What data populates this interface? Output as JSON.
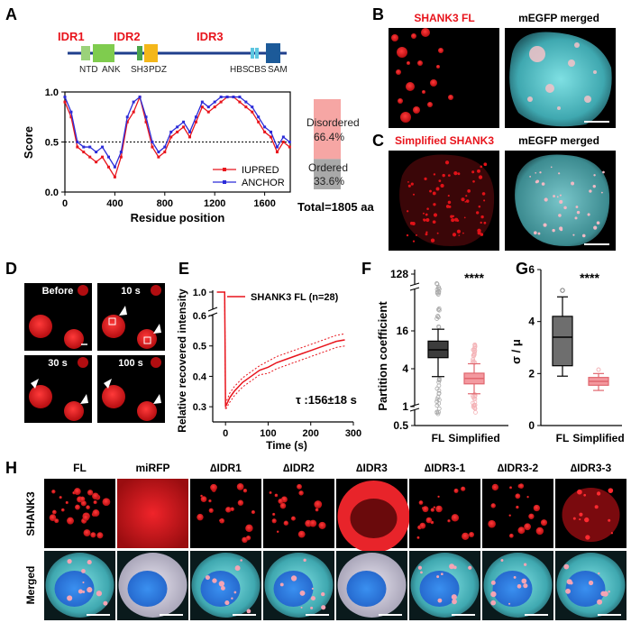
{
  "panels": {
    "A": {
      "letter": "A",
      "domain_map": {
        "region_labels": [
          "IDR1",
          "IDR2",
          "IDR3"
        ],
        "domain_labels": [
          "NTD",
          "ANK",
          "SH3",
          "PDZ",
          "HBS",
          "CBS",
          "SAM"
        ]
      },
      "bar": {
        "disordered_label": "Disordered",
        "disordered_pct": "66.4%",
        "ordered_label": "Ordered",
        "ordered_pct": "33.6%",
        "total": "Total=1805 aa",
        "disordered_fraction": 0.664
      }
    },
    "B": {
      "letter": "B",
      "left_label": "SHANK3 FL",
      "right_label": "mEGFP merged"
    },
    "C": {
      "letter": "C",
      "left_label": "Simplified SHANK3",
      "right_label": "mEGFP merged"
    },
    "D": {
      "letter": "D",
      "labels": [
        "Before",
        "10 s",
        "30 s",
        "100 s"
      ]
    },
    "E": {
      "letter": "E",
      "tau": "τ :156±18 s"
    },
    "F": {
      "letter": "F",
      "significance": "****"
    },
    "G": {
      "letter": "G",
      "significance": "****"
    },
    "H": {
      "letter": "H",
      "columns": [
        "FL",
        "miRFP",
        "∆IDR1",
        "∆IDR2",
        "∆IDR3",
        "∆IDR3-1",
        "∆IDR3-2",
        "∆IDR3-3"
      ],
      "rows": [
        "SHANK3",
        "Merged"
      ]
    }
  },
  "colors": {
    "red": "#e8141c",
    "blue": "#2b2bd8",
    "cyan": "#59c9cf",
    "disordered": "#f6a6a4",
    "ordered": "#a9a9a9"
  },
  "chart_data": [
    {
      "type": "line",
      "panel": "A",
      "xlabel": "Residue position",
      "ylabel": "Score",
      "xlim": [
        0,
        1805
      ],
      "ylim": [
        0,
        1.0
      ],
      "xticks": [
        0,
        400,
        800,
        1200,
        1600
      ],
      "yticks": [
        0.0,
        0.5,
        1.0
      ],
      "threshold": 0.5,
      "x": [
        0,
        50,
        100,
        150,
        200,
        250,
        300,
        350,
        400,
        450,
        500,
        550,
        600,
        650,
        700,
        750,
        800,
        850,
        900,
        950,
        1000,
        1050,
        1100,
        1150,
        1200,
        1250,
        1300,
        1350,
        1400,
        1450,
        1500,
        1550,
        1600,
        1650,
        1700,
        1750,
        1800
      ],
      "series": [
        {
          "name": "IUPRED",
          "values": [
            0.9,
            0.75,
            0.45,
            0.4,
            0.35,
            0.3,
            0.35,
            0.25,
            0.15,
            0.35,
            0.7,
            0.8,
            0.95,
            0.7,
            0.45,
            0.35,
            0.4,
            0.55,
            0.6,
            0.65,
            0.55,
            0.7,
            0.85,
            0.8,
            0.85,
            0.9,
            0.95,
            0.95,
            0.9,
            0.85,
            0.8,
            0.7,
            0.6,
            0.55,
            0.4,
            0.5,
            0.45
          ]
        },
        {
          "name": "ANCHOR",
          "values": [
            0.95,
            0.8,
            0.5,
            0.45,
            0.45,
            0.4,
            0.45,
            0.35,
            0.25,
            0.4,
            0.75,
            0.9,
            0.95,
            0.75,
            0.5,
            0.4,
            0.45,
            0.6,
            0.65,
            0.7,
            0.6,
            0.75,
            0.9,
            0.85,
            0.9,
            0.95,
            0.95,
            0.95,
            0.95,
            0.9,
            0.85,
            0.75,
            0.65,
            0.6,
            0.45,
            0.55,
            0.5
          ]
        }
      ]
    },
    {
      "type": "line",
      "panel": "E",
      "xlabel": "Time (s)",
      "ylabel": "Relative recovered intensity",
      "xlim": [
        -30,
        300
      ],
      "ylim": [
        0.25,
        1.0
      ],
      "xticks": [
        0,
        100,
        200,
        300
      ],
      "yticks": [
        0.3,
        0.4,
        0.5,
        0.6,
        1.0
      ],
      "y_break": true,
      "series": [
        {
          "name": "SHANK3 FL (n=28)",
          "x": [
            -20,
            -10,
            -2,
            0,
            10,
            20,
            40,
            60,
            80,
            100,
            120,
            140,
            160,
            180,
            200,
            220,
            240,
            260,
            280
          ],
          "values": [
            1.0,
            1.0,
            1.0,
            0.3,
            0.33,
            0.35,
            0.38,
            0.4,
            0.42,
            0.43,
            0.445,
            0.455,
            0.465,
            0.475,
            0.485,
            0.495,
            0.505,
            0.515,
            0.52
          ],
          "upper": [
            1.0,
            1.0,
            1.0,
            0.31,
            0.345,
            0.365,
            0.395,
            0.415,
            0.435,
            0.45,
            0.465,
            0.475,
            0.485,
            0.495,
            0.505,
            0.515,
            0.525,
            0.535,
            0.54
          ],
          "lower": [
            1.0,
            1.0,
            1.0,
            0.29,
            0.315,
            0.335,
            0.365,
            0.385,
            0.405,
            0.41,
            0.425,
            0.435,
            0.445,
            0.455,
            0.465,
            0.475,
            0.485,
            0.495,
            0.5
          ]
        }
      ]
    },
    {
      "type": "box",
      "panel": "F",
      "ylabel": "Partition coefficient",
      "yscale": "log2",
      "yticks": [
        0.5,
        1,
        4,
        16,
        128
      ],
      "categories": [
        "FL",
        "Simplified"
      ],
      "boxes": [
        {
          "name": "FL",
          "whisker_low": 3.0,
          "q1": 6.0,
          "median": 8.0,
          "q3": 11.0,
          "whisker_high": 17.0
        },
        {
          "name": "Simplified",
          "whisker_low": 1.6,
          "q1": 2.3,
          "median": 2.8,
          "q3": 3.4,
          "whisker_high": 4.8
        }
      ]
    },
    {
      "type": "box",
      "panel": "G",
      "ylabel": "σ / μ",
      "ylim": [
        0,
        6
      ],
      "yticks": [
        0,
        2,
        4,
        6
      ],
      "categories": [
        "FL",
        "Simplified"
      ],
      "boxes": [
        {
          "name": "FL",
          "whisker_low": 1.9,
          "q1": 2.3,
          "median": 3.4,
          "q3": 4.2,
          "whisker_high": 4.95
        },
        {
          "name": "Simplified",
          "whisker_low": 1.35,
          "q1": 1.55,
          "median": 1.7,
          "q3": 1.85,
          "whisker_high": 2.0
        }
      ]
    }
  ]
}
